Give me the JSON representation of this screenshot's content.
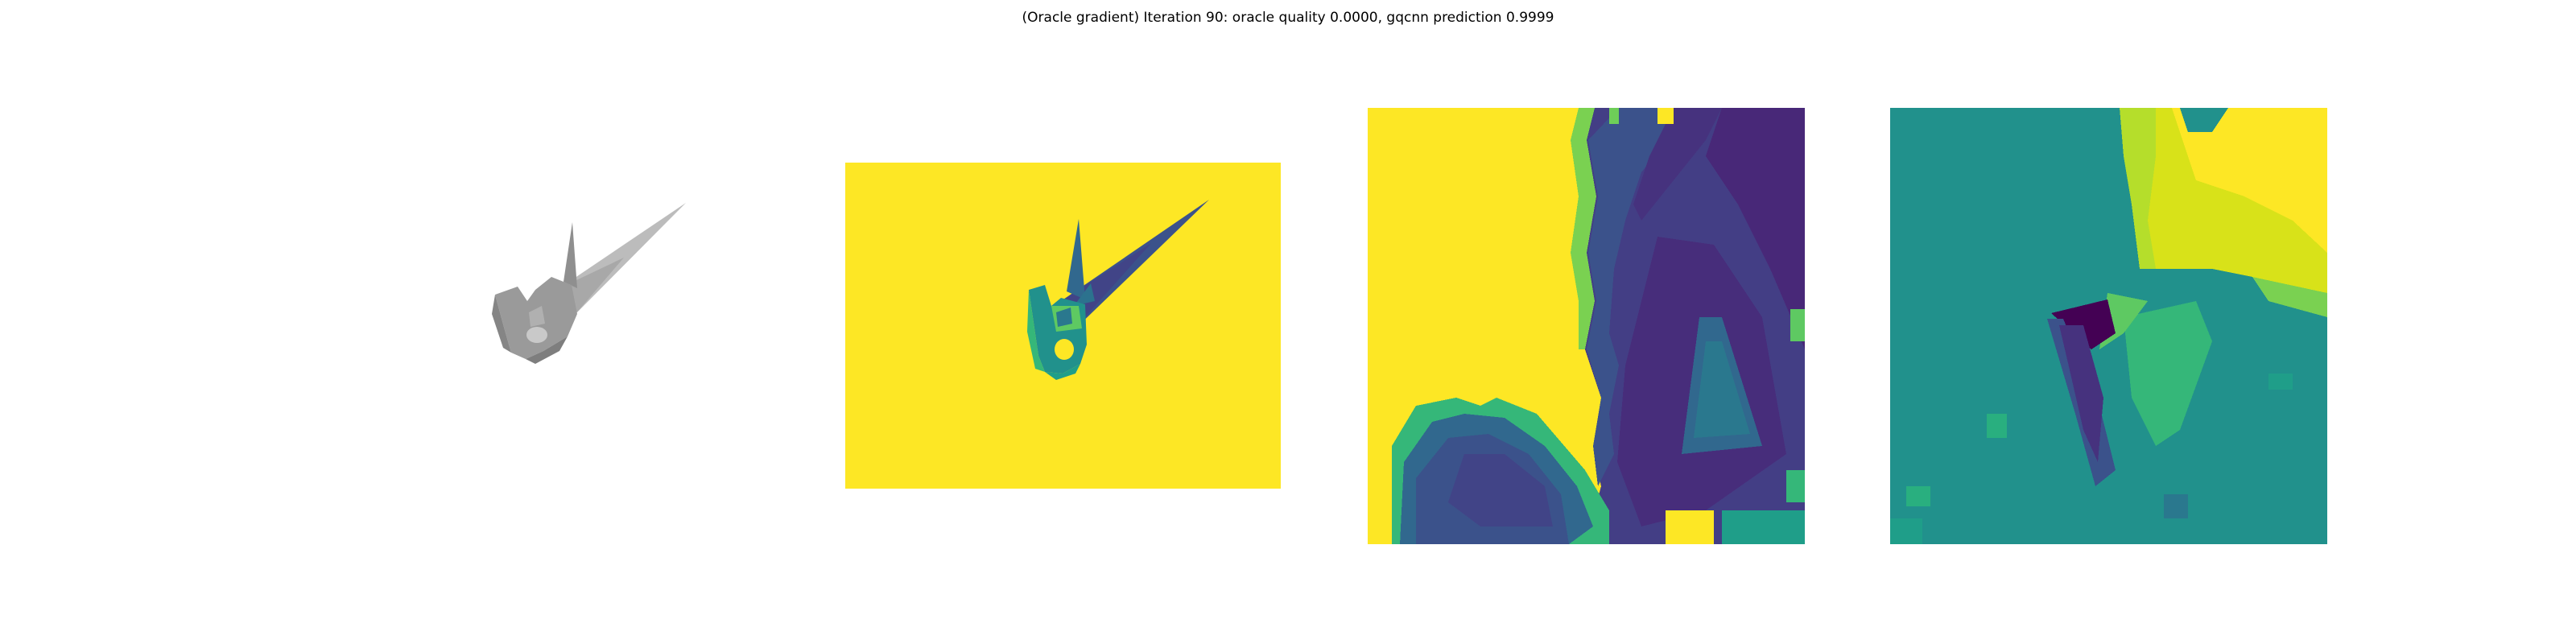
{
  "figure": {
    "title": "(Oracle gradient) Iteration 90: oracle quality 0.0000, gqcnn prediction 0.9999"
  },
  "colors": {
    "background": "#ffffff",
    "viridis_yellow": "#fde725",
    "viridis_teal": "#21918c",
    "viridis_green": "#35b779",
    "viridis_blue": "#3b528b",
    "viridis_purple": "#440154",
    "mesh_gray": "#9a9a9a"
  }
}
